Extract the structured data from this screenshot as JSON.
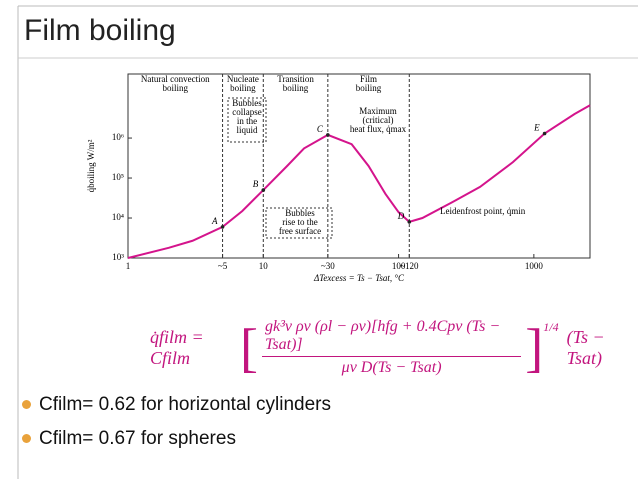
{
  "title": "Film boiling",
  "chart_data": {
    "type": "line",
    "regions": [
      [
        "Natural convection",
        "boiling"
      ],
      [
        "Nucleate",
        "boiling"
      ],
      [
        "Transition",
        "boiling"
      ],
      [
        "Film",
        "boiling"
      ]
    ],
    "ylabel": "q̇boiling W/m²",
    "xlabel": "ΔTexcess = Ts − Tsat, °C",
    "log_x": true,
    "log_y": true,
    "xlim": [
      1,
      2600
    ],
    "ylim": [
      1000,
      40000000
    ],
    "xticks": [
      1,
      {
        "value": 5,
        "label": "~5"
      },
      10,
      {
        "value": 30,
        "label": "~30"
      },
      100,
      {
        "value": 120,
        "label": "~120"
      },
      1000
    ],
    "yticks": [
      {
        "value": 1000,
        "label": "10³"
      },
      {
        "value": 10000,
        "label": "10⁴"
      },
      {
        "value": 100000,
        "label": "10⁵"
      },
      {
        "value": 1000000,
        "label": "10⁶"
      }
    ],
    "boundaries": [
      5,
      10,
      30,
      120
    ],
    "series": [
      {
        "color": "#d4148c",
        "x": [
          1,
          2,
          3,
          5,
          7,
          10,
          15,
          20,
          30,
          45,
          60,
          80,
          100,
          120,
          150,
          250,
          400,
          700,
          1200,
          2000,
          2600
        ],
        "values": [
          1000,
          1800,
          2700,
          6000,
          15000,
          50000,
          200000,
          550000,
          1200000,
          700000,
          200000,
          40000,
          14000,
          8000,
          10000,
          25000,
          60000,
          250000,
          1300000,
          4000000,
          6600000
        ]
      }
    ],
    "points": [
      {
        "label": "A",
        "x": 5,
        "y": 6000
      },
      {
        "label": "B",
        "x": 10,
        "y": 50000
      },
      {
        "label": "C",
        "x": 30,
        "y": 1200000
      },
      {
        "label": "D",
        "x": 120,
        "y": 8000
      },
      {
        "label": "E",
        "x": 1200,
        "y": 1300000
      }
    ],
    "annotations": [
      [
        "Bubbles",
        "collapse",
        "in the",
        "liquid"
      ],
      [
        "Bubbles",
        "rise to the",
        "free surface"
      ],
      [
        "Maximum",
        "(critical)",
        "heat flux, q̇max"
      ],
      [
        "Leidenfrost point, q̇min"
      ]
    ]
  },
  "equation": {
    "lhs": "q̇film = Cfilm",
    "numerator": "gk³v ρv (ρl − ρv)[hfg + 0.4Cpv (Ts − Tsat)]",
    "denominator": "μv D(Ts − Tsat)",
    "exponent": "1/4",
    "tail": "(Ts − Tsat)"
  },
  "bullets": [
    "Cfilm= 0.62 for horizontal cylinders",
    "Cfilm= 0.67 for spheres"
  ]
}
